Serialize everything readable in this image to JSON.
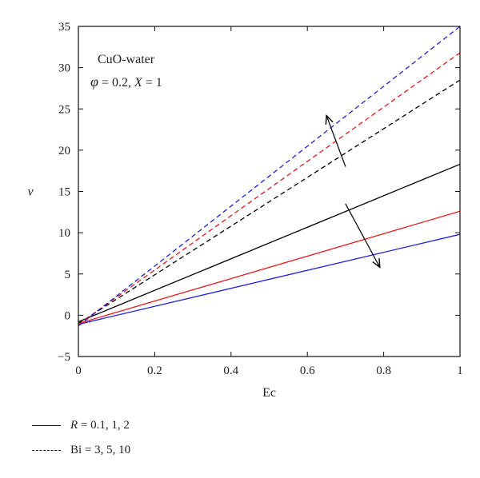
{
  "chart_data": {
    "type": "line",
    "xlabel": "Ec",
    "ylabel": "ν",
    "xlim": [
      0,
      1
    ],
    "ylim": [
      -5,
      35
    ],
    "xticks": [
      0,
      0.2,
      0.4,
      0.6,
      0.8,
      1
    ],
    "yticks": [
      -5,
      0,
      5,
      10,
      15,
      20,
      25,
      30,
      35
    ],
    "xtick_labels": [
      "0",
      "0.2",
      "0.4",
      "0.6",
      "0.8",
      "1"
    ],
    "ytick_labels": [
      "−5",
      "0",
      "5",
      "10",
      "15",
      "20",
      "25",
      "30",
      "35"
    ],
    "grid": false,
    "series": [
      {
        "group": "R",
        "line_style": "solid",
        "color": "#000000",
        "x": [
          0,
          1
        ],
        "y": [
          -0.8,
          18.3
        ]
      },
      {
        "group": "R",
        "line_style": "solid",
        "color": "#e41a1c",
        "x": [
          0,
          1
        ],
        "y": [
          -1.0,
          12.6
        ]
      },
      {
        "group": "R",
        "line_style": "solid",
        "color": "#1f1fd6",
        "x": [
          0,
          1
        ],
        "y": [
          -1.1,
          9.8
        ]
      },
      {
        "group": "Bi",
        "line_style": "dashed",
        "color": "#000000",
        "x": [
          0,
          1
        ],
        "y": [
          -1.0,
          28.5
        ]
      },
      {
        "group": "Bi",
        "line_style": "dashed",
        "color": "#e41a1c",
        "x": [
          0,
          1
        ],
        "y": [
          -1.1,
          31.8
        ]
      },
      {
        "group": "Bi",
        "line_style": "dashed",
        "color": "#1f1fd6",
        "x": [
          0,
          1
        ],
        "y": [
          -1.3,
          35.0
        ]
      }
    ],
    "annotations": {
      "line1": "CuO-water",
      "line2_symbol": "φ",
      "line2_rest": " = 0.2, ",
      "line2_var": "X",
      "line2_end": " = 1"
    },
    "arrows": [
      {
        "name": "arrow-dashed-group",
        "from": [
          0.7,
          18.0
        ],
        "to": [
          0.65,
          24.2
        ]
      },
      {
        "name": "arrow-solid-group",
        "from": [
          0.7,
          13.5
        ],
        "to": [
          0.79,
          5.8
        ]
      }
    ],
    "legend": {
      "placement": "below",
      "entries": [
        {
          "style": "solid",
          "var": "R",
          "text": " = 0.1, 1, 2"
        },
        {
          "style": "dashed",
          "var": "",
          "text": "Bi = 3, 5, 10"
        }
      ]
    }
  }
}
